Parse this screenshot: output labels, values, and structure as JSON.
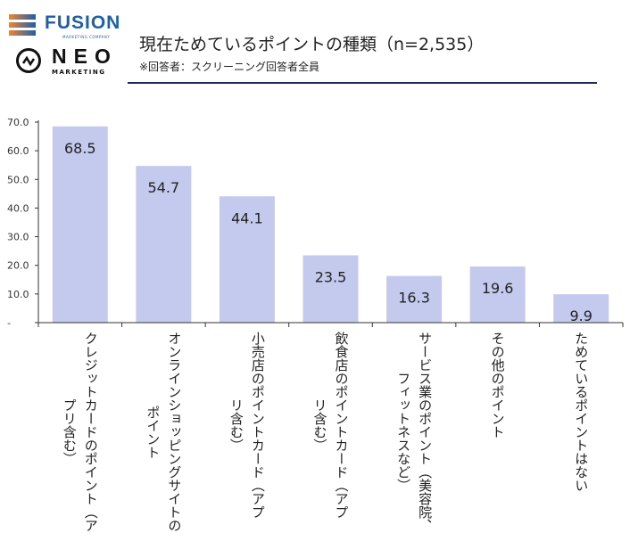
{
  "logos": {
    "fusion": "FUSION",
    "fusion_sub": "MARKETING COMPANY",
    "neo": "NEO",
    "neo_sub": "MARKETING"
  },
  "header": {
    "title": "現在ためているポイントの種類（n=2,535）",
    "subtitle": "※回答者：スクリーニング回答者全員"
  },
  "colors": {
    "bar": "#c3caee",
    "rule": "#1f2a5c",
    "axis": "#333333"
  },
  "chart_data": {
    "type": "bar",
    "categories": [
      [
        "クレジットカードのポイント（ア",
        "プリ含む）"
      ],
      [
        "オンラインショッピングサイトの",
        "ポイント"
      ],
      [
        "小売店のポイントカード（アプ",
        "リ含む）"
      ],
      [
        "飲食店のポイントカード（アプ",
        "リ含む）"
      ],
      [
        "サービス業のポイント（美容院、",
        "フィットネスなど）"
      ],
      [
        "その他のポイント"
      ],
      [
        "ためているポイントはない"
      ]
    ],
    "values": [
      68.5,
      54.7,
      44.1,
      23.5,
      16.3,
      19.6,
      9.9
    ],
    "value_labels": [
      "68.5",
      "54.7",
      "44.1",
      "23.5",
      "16.3",
      "19.6",
      "9.9"
    ],
    "yticks": [
      "-",
      "10.0",
      "20.0",
      "30.0",
      "40.0",
      "50.0",
      "60.0",
      "70.0"
    ],
    "ylim": [
      0,
      70
    ],
    "grid": false
  }
}
